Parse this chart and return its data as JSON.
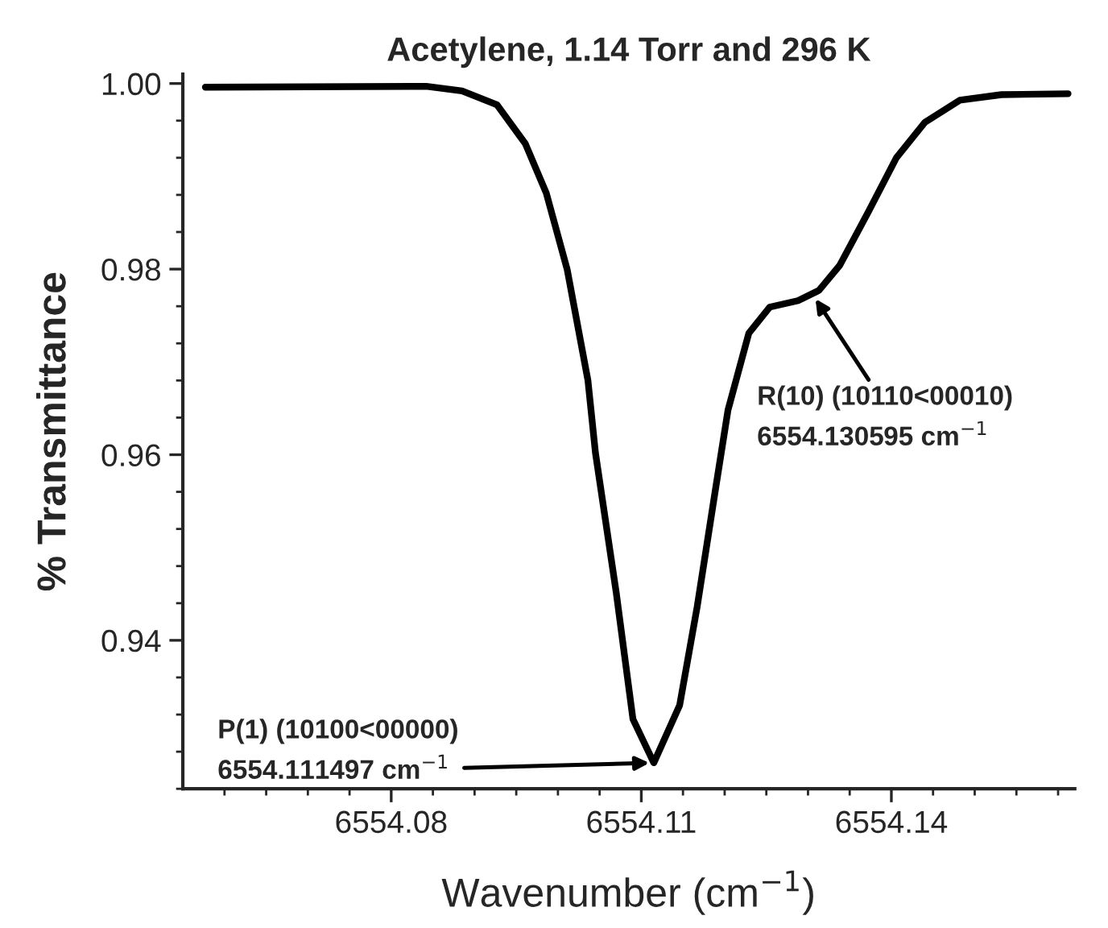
{
  "chart_data": {
    "type": "line",
    "title": "Acetylene, 1.14 Torr and 296 K",
    "xlabel": "Wavenumber (cm$^{−1}$)",
    "ylabel": "% Transmittance",
    "x": [
      6554.0577,
      6554.0842,
      6554.0885,
      6554.0927,
      6554.0961,
      6554.0986,
      6554.1011,
      6554.1036,
      6554.1045,
      6554.107,
      6554.109,
      6554.1115,
      6554.1146,
      6554.1167,
      6554.1188,
      6554.1204,
      6554.1229,
      6554.1254,
      6554.1288,
      6554.1313,
      6554.1338,
      6554.1372,
      6554.1406,
      6554.144,
      6554.1482,
      6554.1532,
      6554.1612
    ],
    "series": [
      {
        "color": "#000000",
        "values": [
          0.9996,
          0.9997,
          0.9992,
          0.9977,
          0.9935,
          0.9882,
          0.98,
          0.968,
          0.9602,
          0.9451,
          0.9315,
          0.9268,
          0.933,
          0.9436,
          0.9557,
          0.9648,
          0.9731,
          0.9759,
          0.9766,
          0.9777,
          0.9804,
          0.9861,
          0.992,
          0.9958,
          0.9982,
          0.9988,
          0.9989
        ]
      }
    ],
    "xlim": [
      6554.055,
      6554.162
    ],
    "xticks": [
      6554.08,
      6554.11,
      6554.14
    ],
    "ylim": [
      0.924,
      1.001
    ],
    "yticks": [
      {
        "value": 0.94,
        "label": "0.94"
      },
      {
        "value": 0.96,
        "label": "0.96"
      },
      {
        "value": 0.98,
        "label": "0.98"
      },
      {
        "value": 1.0,
        "label": "1.00"
      }
    ],
    "grid": false,
    "legend": false,
    "annotations": [
      {
        "text": "P(1) (10100<00000)\n6554.111497 cm$^{−1}$",
        "x": 6554.1115,
        "y": 0.9268
      },
      {
        "text": "R(10) (10110<00010)\n6554.130595 cm$^{−1}$",
        "x": 6554.1306,
        "y": 0.9772
      }
    ]
  }
}
